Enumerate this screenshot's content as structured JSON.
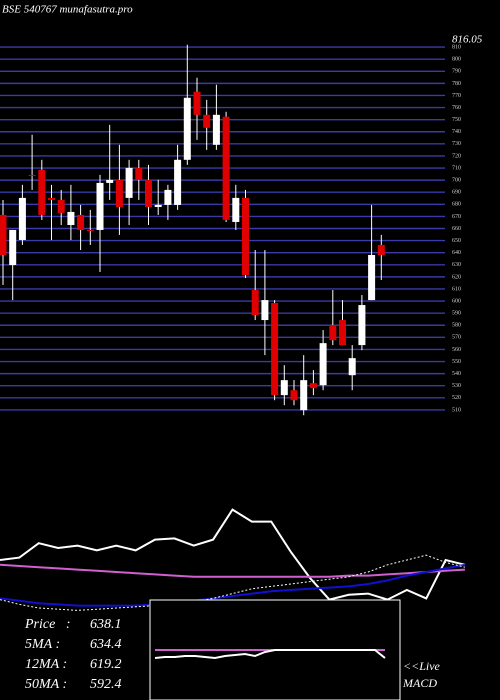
{
  "header": {
    "title": "BSE 540767 munafasutra.pro"
  },
  "chart_data": [
    {
      "type": "candlestick",
      "high_marker": 816.05,
      "ylim": [
        500,
        820
      ],
      "yticks": [
        510,
        520,
        530,
        540,
        550,
        560,
        570,
        580,
        590,
        600,
        610,
        620,
        630,
        640,
        650,
        660,
        670,
        680,
        690,
        700,
        710,
        720,
        730,
        740,
        750,
        760,
        770,
        780,
        790,
        800,
        810
      ],
      "grid": true,
      "grid_color": "#3a3aa8",
      "up_color": "#ffffff",
      "down_color": "#e00000",
      "open": [
        671.2,
        629.8,
        650.5,
        704.3,
        708.5,
        685.3,
        683.6,
        662.9,
        671.2,
        658.8,
        658.8,
        697.7,
        700.2,
        685.3,
        710.1,
        700.2,
        677.8,
        679.5,
        679.5,
        716.8,
        773.1,
        754.0,
        729.2,
        752.4,
        665.4,
        685.3,
        609.1,
        584.3,
        598.4,
        522.2,
        526.3,
        509.8,
        532.1,
        530.5,
        580.1,
        584.3,
        538.7,
        563.6,
        600.8,
        646.4
      ],
      "high": [
        683.6,
        658.8,
        696.1,
        737.5,
        716.8,
        696.1,
        691.9,
        696.1,
        679.5,
        675.4,
        704.3,
        745.7,
        729.2,
        716.8,
        716.8,
        712.6,
        700.2,
        696.1,
        729.2,
        812.0,
        784.7,
        766.4,
        778.9,
        756.5,
        696.1,
        691.9,
        642.2,
        642.2,
        600.8,
        547.0,
        534.6,
        555.3,
        542.9,
        576.0,
        609.1,
        600.8,
        563.6,
        605.0,
        679.5,
        654.7
      ],
      "low": [
        613.3,
        600.8,
        646.4,
        691.9,
        667.1,
        650.5,
        662.9,
        650.5,
        642.2,
        646.4,
        624.0,
        683.6,
        654.7,
        662.9,
        683.6,
        662.9,
        671.2,
        667.1,
        675.4,
        712.6,
        733.3,
        725.0,
        725.0,
        665.4,
        658.8,
        619.1,
        584.3,
        555.3,
        518.0,
        513.9,
        513.9,
        505.6,
        522.2,
        526.3,
        563.6,
        563.6,
        526.3,
        559.4,
        600.8,
        617.4
      ],
      "close": [
        638.1,
        658.8,
        685.3,
        703.5,
        671.2,
        683.6,
        672.9,
        673.7,
        658.8,
        658.2,
        697.7,
        700.2,
        677.8,
        710.1,
        700.2,
        677.8,
        679.5,
        691.9,
        716.8,
        768.1,
        754.0,
        743.3,
        754.0,
        667.1,
        685.3,
        621.5,
        588.4,
        600.8,
        522.2,
        534.6,
        518.0,
        534.6,
        528.0,
        565.2,
        567.7,
        563.6,
        552.8,
        596.7,
        638.1,
        638.1
      ]
    },
    {
      "type": "line",
      "ylim": [
        0,
        100
      ],
      "series": [
        {
          "color": "#ffffff",
          "values": [
            50,
            52,
            64,
            60,
            62,
            58,
            62,
            58,
            67,
            68,
            62,
            67,
            92,
            82,
            82,
            57,
            35,
            17,
            21,
            22,
            17,
            25,
            18,
            50,
            46
          ]
        },
        {
          "color": "#d060d0",
          "values": [
            46,
            45,
            44,
            43,
            42,
            41,
            40,
            39,
            38,
            37,
            36,
            36,
            36,
            36,
            36,
            36,
            36,
            36,
            37,
            37,
            38,
            39,
            40,
            41,
            42
          ]
        },
        {
          "color": "#1010d0",
          "values": [
            18,
            16,
            14,
            13,
            12,
            12,
            12,
            12,
            13,
            14,
            16,
            18,
            20,
            22,
            24,
            25,
            26,
            27,
            28,
            30,
            33,
            37,
            40,
            43,
            46
          ]
        },
        {
          "color": "#ffffff",
          "dashed": true,
          "values": [
            17,
            13,
            10,
            9,
            8,
            9,
            10,
            11,
            12,
            13,
            15,
            18,
            22,
            26,
            28,
            30,
            32,
            34,
            36,
            40,
            46,
            50,
            54,
            48,
            44
          ]
        }
      ]
    },
    {
      "type": "line",
      "ylim": [
        0,
        100
      ],
      "series": [
        {
          "color": "#d060d0",
          "values": [
            50,
            50,
            50,
            50,
            50,
            50,
            50,
            50,
            50,
            50,
            50,
            50,
            50,
            50,
            50,
            50,
            50,
            50,
            50,
            50,
            50,
            50,
            50,
            50
          ]
        },
        {
          "color": "#ffffff",
          "values": [
            42,
            43,
            43,
            44,
            44,
            43,
            42,
            44,
            45,
            46,
            44,
            48,
            50,
            50,
            50,
            50,
            50,
            50,
            50,
            50,
            50,
            50,
            50,
            42
          ]
        }
      ]
    }
  ],
  "stats": [
    {
      "label": "Price   :",
      "value": 638.1
    },
    {
      "label": "5MA :",
      "value": 634.4
    },
    {
      "label": "12MA :",
      "value": 619.2
    },
    {
      "label": "50MA :",
      "value": 592.4
    }
  ],
  "live_label": "<<Live",
  "macd_label": "MACD"
}
